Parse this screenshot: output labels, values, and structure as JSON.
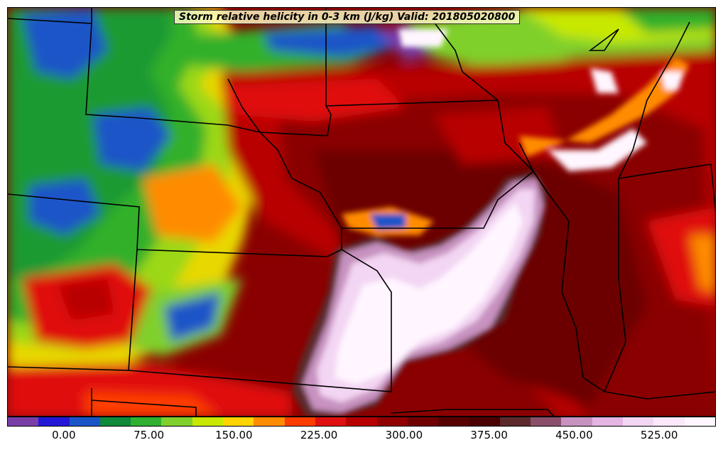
{
  "map": {
    "title": "Storm relative helicity in 0-3 km (J/kg) Valid: 201805020800",
    "field": "storm relative helicity 0-3 km",
    "region": "Central United States",
    "high_value_color": "#fbe6fb",
    "low_value_color": "#1530c8"
  },
  "colorbar": {
    "colors": [
      "#7a3ea8",
      "#2418d8",
      "#1a55c8",
      "#0f8a3a",
      "#30b030",
      "#7fd02a",
      "#c8e800",
      "#ffd400",
      "#ff8c00",
      "#ff3c00",
      "#e01010",
      "#b80000",
      "#900000",
      "#700000",
      "#580000",
      "#4a0000",
      "#5c2a2a",
      "#8b4f6b",
      "#c792c0",
      "#e4b4e2",
      "#f3d6f3",
      "#fbe8fb",
      "#fff6ff"
    ],
    "tick_labels": [
      {
        "text": "0.00",
        "value": 0
      },
      {
        "text": "75.00",
        "value": 75
      },
      {
        "text": "150.00",
        "value": 150
      },
      {
        "text": "225.00",
        "value": 225
      },
      {
        "text": "300.00",
        "value": 300
      },
      {
        "text": "375.00",
        "value": 375
      },
      {
        "text": "450.00",
        "value": 450
      },
      {
        "text": "525.00",
        "value": 525
      }
    ],
    "min": -50,
    "max": 575
  }
}
